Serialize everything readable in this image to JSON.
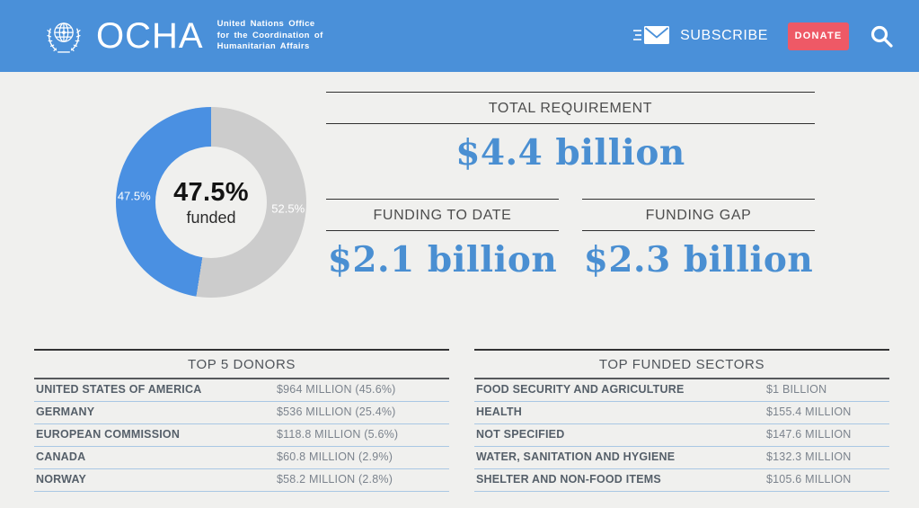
{
  "header": {
    "org": "OCHA",
    "tagline_lines": [
      "United Nations Office",
      "for the Coordination of",
      "Humanitarian Affairs"
    ],
    "subscribe_label": "SUBSCRIBE",
    "donate_label": "DONATE"
  },
  "chart_data": {
    "type": "pie",
    "title": "47.5% funded",
    "center_value": "47.5%",
    "center_label": "funded",
    "start": "top",
    "direction": "clockwise",
    "slices": [
      {
        "label": "unfunded",
        "value": 52.5,
        "display": "52.5%",
        "color": "#cccccc"
      },
      {
        "label": "funded",
        "value": 47.5,
        "display": "47.5%",
        "color": "#4a90e2"
      }
    ]
  },
  "stats": [
    {
      "label": "TOTAL REQUIREMENT",
      "value": "$4.4 billion"
    },
    {
      "label": "FUNDING TO DATE",
      "value": "$2.1 billion"
    },
    {
      "label": "FUNDING GAP",
      "value": "$2.3 billion"
    }
  ],
  "tables": [
    {
      "title": "TOP 5 DONORS",
      "rows": [
        [
          "UNITED STATES OF AMERICA",
          "$964 MILLION (45.6%)"
        ],
        [
          "GERMANY",
          "$536 MILLION (25.4%)"
        ],
        [
          "EUROPEAN COMMISSION",
          "$118.8 MILLION (5.6%)"
        ],
        [
          "CANADA",
          "$60.8 MILLION (2.9%)"
        ],
        [
          "NORWAY",
          "$58.2 MILLION (2.8%)"
        ]
      ]
    },
    {
      "title": "TOP FUNDED SECTORS",
      "rows": [
        [
          "FOOD SECURITY AND AGRICULTURE",
          "$1 BILLION"
        ],
        [
          "HEALTH",
          "$155.4 MILLION"
        ],
        [
          "NOT SPECIFIED",
          "$147.6 MILLION"
        ],
        [
          "WATER, SANITATION AND HYGIENE",
          "$132.3 MILLION"
        ],
        [
          "SHELTER AND NON-FOOD ITEMS",
          "$105.6 MILLION"
        ]
      ]
    }
  ],
  "colors": {
    "header_bg": "#4a90d9",
    "donate_bg": "#ee5966",
    "page_bg": "#f0f0ee",
    "amount_text": "#4a8fd2",
    "row_separator": "#a9c7e4"
  }
}
